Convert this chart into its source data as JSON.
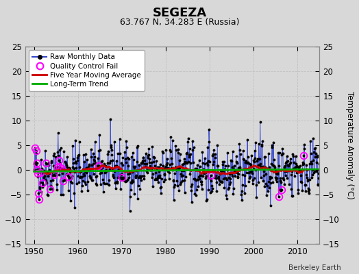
{
  "title": "SEGEZA",
  "subtitle": "63.767 N, 34.283 E (Russia)",
  "ylabel": "Temperature Anomaly (°C)",
  "credit": "Berkeley Earth",
  "xlim": [
    1948,
    2015
  ],
  "ylim": [
    -15,
    25
  ],
  "yticks": [
    -15,
    -10,
    -5,
    0,
    5,
    10,
    15,
    20,
    25
  ],
  "xticks": [
    1950,
    1960,
    1970,
    1980,
    1990,
    2000,
    2010
  ],
  "bg_color": "#d8d8d8",
  "plot_bg_color": "#d8d8d8",
  "raw_line_color": "#3344cc",
  "raw_dot_color": "#000000",
  "qc_fail_color": "#ff00ff",
  "moving_avg_color": "#cc0000",
  "trend_color": "#00aa00",
  "start_year": 1950,
  "end_year": 2014,
  "seed": 42
}
